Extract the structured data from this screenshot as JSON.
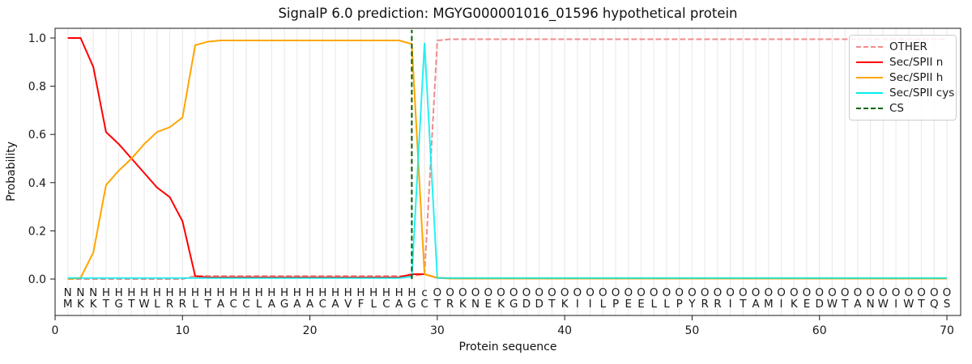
{
  "chart_data": {
    "type": "line",
    "title": "SignalP 6.0 prediction: MGYG000001016_01596 hypothetical protein",
    "xlabel": "Protein sequence",
    "ylabel": "Probability",
    "xticks": [
      0,
      10,
      20,
      30,
      40,
      50,
      60,
      70
    ],
    "yticks": [
      0.0,
      0.2,
      0.4,
      0.6,
      0.8,
      1.0
    ],
    "xlim": [
      0,
      71
    ],
    "ylim": [
      0,
      1
    ],
    "grid": "vertical line at every residue position",
    "legend_position": "upper right",
    "sequence": "MKKTGTWLRRLTACCLAGAACAVFLCAGCTRKNEKGDDTKIILPEELLPYRRITAMIKEDWTANWIWTQS",
    "residue_labels": "NNNHHHHHHHHHHHHHHHHHHHHHHHHHcOOOOOOOOOOOOOOOOOOOOOOOOOOOOOOOOOOOOOOOOO",
    "residue_label_colors": {
      "N": "#ff0000",
      "H": "#ffa500",
      "c": "#00dddd",
      "O": "#8c8c8c"
    },
    "sequence_color": "#3a3a3a",
    "series": [
      {
        "name": "OTHER",
        "color": "#f08c8c",
        "style": "dashed",
        "opacity": 1,
        "values": [
          0,
          0,
          0,
          0,
          0,
          0,
          0,
          0,
          0,
          0,
          0.013,
          0.013,
          0.013,
          0.013,
          0.013,
          0.013,
          0.013,
          0.013,
          0.013,
          0.013,
          0.013,
          0.013,
          0.013,
          0.013,
          0.013,
          0.013,
          0.013,
          0.013,
          0.02,
          0.99,
          0.995,
          0.995,
          0.995,
          0.995,
          0.995,
          0.995,
          0.995,
          0.995,
          0.995,
          0.995,
          0.995,
          0.995,
          0.995,
          0.995,
          0.995,
          0.995,
          0.995,
          0.995,
          0.995,
          0.995,
          0.995,
          0.995,
          0.995,
          0.995,
          0.995,
          0.995,
          0.995,
          0.995,
          0.995,
          0.995,
          0.995,
          0.995,
          0.995,
          0.995,
          0.995,
          0.995,
          0.995,
          0.995,
          0.995,
          0.995
        ]
      },
      {
        "name": "Sec/SPII n",
        "color": "#ff0000",
        "style": "solid",
        "opacity": 1,
        "values": [
          1.0,
          1.0,
          0.88,
          0.61,
          0.56,
          0.5,
          0.44,
          0.38,
          0.34,
          0.24,
          0.012,
          0.007,
          0.007,
          0.007,
          0.007,
          0.007,
          0.007,
          0.007,
          0.007,
          0.007,
          0.007,
          0.007,
          0.007,
          0.007,
          0.007,
          0.007,
          0.007,
          0.02,
          0.02,
          0.005,
          0.003,
          0.003,
          0.003,
          0.003,
          0.003,
          0.003,
          0.003,
          0.003,
          0.003,
          0.003,
          0.003,
          0.003,
          0.003,
          0.003,
          0.003,
          0.003,
          0.003,
          0.003,
          0.003,
          0.003,
          0.003,
          0.003,
          0.003,
          0.003,
          0.003,
          0.003,
          0.003,
          0.003,
          0.003,
          0.003,
          0.003,
          0.003,
          0.003,
          0.003,
          0.003,
          0.003,
          0.003,
          0.003,
          0.003,
          0.003
        ]
      },
      {
        "name": "Sec/SPII h",
        "color": "#ffa500",
        "style": "solid",
        "opacity": 1,
        "values": [
          0,
          0.005,
          0.11,
          0.39,
          0.45,
          0.5,
          0.56,
          0.61,
          0.63,
          0.67,
          0.97,
          0.985,
          0.99,
          0.99,
          0.99,
          0.99,
          0.99,
          0.99,
          0.99,
          0.99,
          0.99,
          0.99,
          0.99,
          0.99,
          0.99,
          0.99,
          0.99,
          0.975,
          0.02,
          0.005,
          0.002,
          0.002,
          0.002,
          0.002,
          0.002,
          0.002,
          0.002,
          0.002,
          0.002,
          0.002,
          0.002,
          0.002,
          0.002,
          0.002,
          0.002,
          0.002,
          0.002,
          0.002,
          0.002,
          0.002,
          0.002,
          0.002,
          0.002,
          0.002,
          0.002,
          0.002,
          0.002,
          0.002,
          0.002,
          0.002,
          0.002,
          0.002,
          0.002,
          0.002,
          0.002,
          0.002,
          0.002,
          0.002,
          0.002,
          0.002
        ]
      },
      {
        "name": "Sec/SPII cys",
        "color": "#00eeee",
        "style": "solid",
        "opacity": 0.85,
        "values": [
          0.004,
          0.004,
          0.004,
          0.004,
          0.004,
          0.004,
          0.004,
          0.004,
          0.004,
          0.004,
          0.004,
          0.004,
          0.004,
          0.004,
          0.004,
          0.004,
          0.004,
          0.004,
          0.004,
          0.004,
          0.004,
          0.004,
          0.004,
          0.004,
          0.004,
          0.004,
          0.004,
          0.01,
          0.98,
          0.004,
          0.004,
          0.004,
          0.004,
          0.004,
          0.004,
          0.004,
          0.004,
          0.004,
          0.004,
          0.004,
          0.004,
          0.004,
          0.004,
          0.004,
          0.004,
          0.004,
          0.004,
          0.004,
          0.004,
          0.004,
          0.004,
          0.004,
          0.004,
          0.004,
          0.004,
          0.004,
          0.004,
          0.004,
          0.004,
          0.004,
          0.004,
          0.004,
          0.004,
          0.004,
          0.004,
          0.004,
          0.004,
          0.004,
          0.004,
          0.004
        ]
      }
    ],
    "markers": [
      {
        "name": "CS",
        "type": "vline",
        "x": 28,
        "color": "#006400",
        "style": "dashed"
      }
    ]
  }
}
